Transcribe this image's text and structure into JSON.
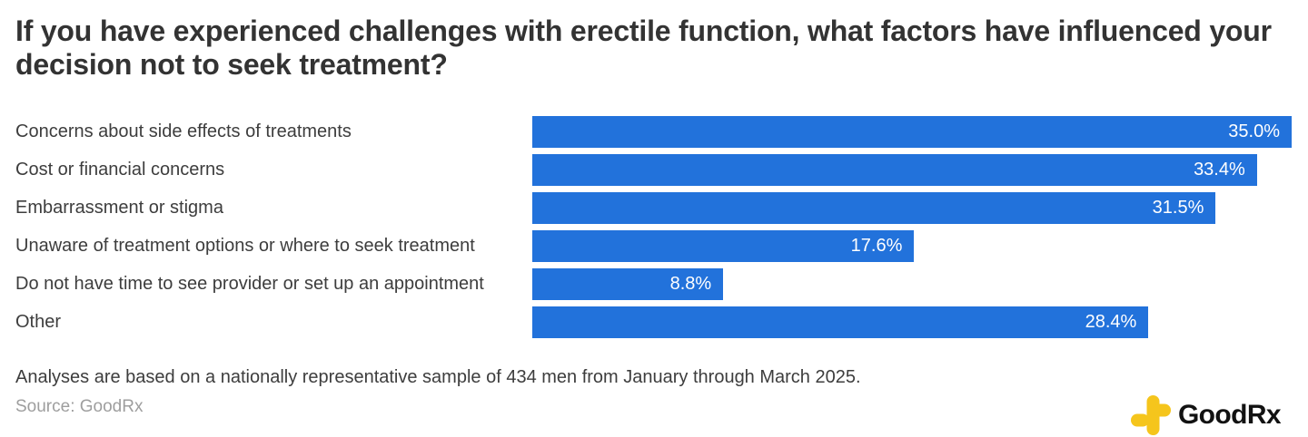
{
  "title": "If you have experienced challenges with erectile function, what factors have influenced your decision not to seek treatment?",
  "chart_data": {
    "type": "bar",
    "orientation": "horizontal",
    "title": "If you have experienced challenges with erectile function, what factors have influenced your decision not to seek treatment?",
    "categories": [
      "Concerns about side effects of treatments",
      "Cost or financial concerns",
      "Embarrassment or stigma",
      "Unaware of treatment options or where to seek treatment",
      "Do not have time to see provider or set up an appointment",
      "Other"
    ],
    "values": [
      35.0,
      33.4,
      31.5,
      17.6,
      8.8,
      28.4
    ],
    "value_labels": [
      "35.0%",
      "33.4%",
      "31.5%",
      "17.6%",
      "8.8%",
      "28.4%"
    ],
    "axis_max": 35.0,
    "bar_color": "#2272db",
    "value_text_color": "#ffffff",
    "grid": false,
    "legend": false,
    "xlabel": "",
    "ylabel": ""
  },
  "footer": {
    "note": "Analyses are based on a nationally representative sample of 434 men from January through March 2025.",
    "source": "Source: GoodRx"
  },
  "logo": {
    "text": "GoodRx",
    "icon": "goodrx-plus-icon",
    "icon_color": "#f5c51c"
  }
}
